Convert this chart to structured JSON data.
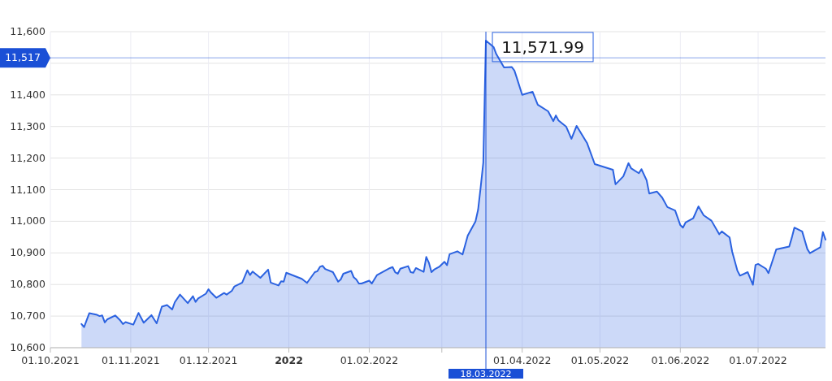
{
  "chart_data": {
    "type": "area",
    "grid": true,
    "xlim": [
      "2021-10-01",
      "2022-07-27"
    ],
    "xticks": [
      {
        "value": "2021-10-01",
        "label": "01.10.2021"
      },
      {
        "value": "2021-11-01",
        "label": "01.11.2021"
      },
      {
        "value": "2021-12-01",
        "label": "01.12.2021"
      },
      {
        "value": "2022-01-01",
        "label": "2022"
      },
      {
        "value": "2022-02-01",
        "label": "01.02.2022"
      },
      {
        "value": "2022-03-01",
        "label": null
      },
      {
        "value": "2022-04-01",
        "label": "01.04.2022"
      },
      {
        "value": "2022-05-01",
        "label": "01.05.2022"
      },
      {
        "value": "2022-06-01",
        "label": "01.06.2022"
      },
      {
        "value": "2022-07-01",
        "label": "01.07.2022"
      }
    ],
    "ylim": [
      10600,
      11600
    ],
    "yticks": [
      {
        "value": 10600,
        "label": "10,600"
      },
      {
        "value": 10700,
        "label": "10,700"
      },
      {
        "value": 10800,
        "label": "10,800"
      },
      {
        "value": 10900,
        "label": "10,900"
      },
      {
        "value": 11000,
        "label": "11,000"
      },
      {
        "value": 11100,
        "label": "11,100"
      },
      {
        "value": 11200,
        "label": "11,200"
      },
      {
        "value": 11300,
        "label": "11,300"
      },
      {
        "value": 11400,
        "label": "11,400"
      },
      {
        "value": 11500,
        "label": null
      },
      {
        "value": 11600,
        "label": "11,600"
      }
    ],
    "ref_lines": [
      {
        "axis": "x",
        "value": "2022-03-18",
        "label": "18.03.2022",
        "color": "#1a4fd6"
      },
      {
        "axis": "y",
        "value": 11517,
        "label": "11,517",
        "color": "#1a4fd6"
      }
    ],
    "annotations": [
      {
        "text": "11,571.99",
        "x": "2022-03-18",
        "y": 11571.99
      }
    ],
    "series": [
      {
        "color": "#2b62e0",
        "x": [
          "2021-10-13",
          "2021-10-14",
          "2021-10-16",
          "2021-10-19",
          "2021-10-20",
          "2021-10-21",
          "2021-10-22",
          "2021-10-23",
          "2021-10-26",
          "2021-10-28",
          "2021-10-29",
          "2021-10-30",
          "2021-11-02",
          "2021-11-04",
          "2021-11-06",
          "2021-11-09",
          "2021-11-11",
          "2021-11-13",
          "2021-11-15",
          "2021-11-17",
          "2021-11-18",
          "2021-11-20",
          "2021-11-23",
          "2021-11-25",
          "2021-11-26",
          "2021-11-27",
          "2021-11-30",
          "2021-12-01",
          "2021-12-02",
          "2021-12-04",
          "2021-12-07",
          "2021-12-08",
          "2021-12-10",
          "2021-12-11",
          "2021-12-14",
          "2021-12-16",
          "2021-12-17",
          "2021-12-18",
          "2021-12-21",
          "2021-12-24",
          "2021-12-25",
          "2021-12-28",
          "2021-12-29",
          "2021-12-30",
          "2021-12-31",
          "2022-01-06",
          "2022-01-08",
          "2022-01-11",
          "2022-01-12",
          "2022-01-13",
          "2022-01-14",
          "2022-01-15",
          "2022-01-18",
          "2022-01-20",
          "2022-01-21",
          "2022-01-22",
          "2022-01-25",
          "2022-01-26",
          "2022-01-27",
          "2022-01-28",
          "2022-01-29",
          "2022-02-01",
          "2022-02-02",
          "2022-02-04",
          "2022-02-09",
          "2022-02-10",
          "2022-02-11",
          "2022-02-12",
          "2022-02-13",
          "2022-02-16",
          "2022-02-17",
          "2022-02-18",
          "2022-02-19",
          "2022-02-22",
          "2022-02-23",
          "2022-02-24",
          "2022-02-25",
          "2022-02-26",
          "2022-02-28",
          "2022-03-02",
          "2022-03-03",
          "2022-03-04",
          "2022-03-07",
          "2022-03-09",
          "2022-03-11",
          "2022-03-14",
          "2022-03-15",
          "2022-03-16",
          "2022-03-17",
          "2022-03-18",
          "2022-03-21",
          "2022-03-22",
          "2022-03-25",
          "2022-03-28",
          "2022-03-29",
          "2022-03-30",
          "2022-04-01",
          "2022-04-05",
          "2022-04-07",
          "2022-04-11",
          "2022-04-13",
          "2022-04-14",
          "2022-04-15",
          "2022-04-18",
          "2022-04-20",
          "2022-04-22",
          "2022-04-26",
          "2022-04-29",
          "2022-05-06",
          "2022-05-07",
          "2022-05-10",
          "2022-05-12",
          "2022-05-13",
          "2022-05-16",
          "2022-05-17",
          "2022-05-19",
          "2022-05-20",
          "2022-05-23",
          "2022-05-25",
          "2022-05-27",
          "2022-05-30",
          "2022-06-01",
          "2022-06-02",
          "2022-06-03",
          "2022-06-06",
          "2022-06-08",
          "2022-06-10",
          "2022-06-13",
          "2022-06-16",
          "2022-06-17",
          "2022-06-20",
          "2022-06-21",
          "2022-06-23",
          "2022-06-24",
          "2022-06-27",
          "2022-06-29",
          "2022-06-30",
          "2022-07-01",
          "2022-07-04",
          "2022-07-05",
          "2022-07-08",
          "2022-07-13",
          "2022-07-14",
          "2022-07-15",
          "2022-07-18",
          "2022-07-20",
          "2022-07-21",
          "2022-07-25",
          "2022-07-26",
          "2022-07-27"
        ],
        "values": [
          10675,
          10665,
          10709,
          10704,
          10700,
          10702,
          10680,
          10690,
          10702,
          10686,
          10675,
          10681,
          10673,
          10710,
          10679,
          10703,
          10677,
          10730,
          10735,
          10721,
          10744,
          10768,
          10741,
          10763,
          10745,
          10756,
          10771,
          10785,
          10774,
          10758,
          10773,
          10768,
          10780,
          10794,
          10806,
          10845,
          10830,
          10841,
          10821,
          10847,
          10806,
          10797,
          10810,
          10809,
          10837,
          10818,
          10805,
          10839,
          10842,
          10856,
          10859,
          10849,
          10839,
          10809,
          10816,
          10834,
          10843,
          10823,
          10816,
          10803,
          10803,
          10812,
          10803,
          10830,
          10852,
          10855,
          10839,
          10834,
          10850,
          10858,
          10839,
          10837,
          10852,
          10840,
          10887,
          10869,
          10839,
          10847,
          10856,
          10872,
          10861,
          10896,
          10905,
          10895,
          10955,
          11000,
          11037,
          11109,
          11186,
          11571.99,
          11551,
          11529,
          11487,
          11488,
          11477,
          11452,
          11400,
          11410,
          11369,
          11348,
          11317,
          11335,
          11319,
          11299,
          11261,
          11302,
          11248,
          11181,
          11163,
          11117,
          11142,
          11184,
          11168,
          11152,
          11165,
          11130,
          11088,
          11094,
          11075,
          11045,
          11034,
          10988,
          10980,
          10996,
          11010,
          11047,
          11019,
          11002,
          10959,
          10968,
          10949,
          10904,
          10844,
          10828,
          10839,
          10799,
          10862,
          10865,
          10850,
          10836,
          10911,
          10920,
          10948,
          10980,
          10968,
          10912,
          10899,
          10918,
          10966,
          10942
        ]
      }
    ]
  }
}
